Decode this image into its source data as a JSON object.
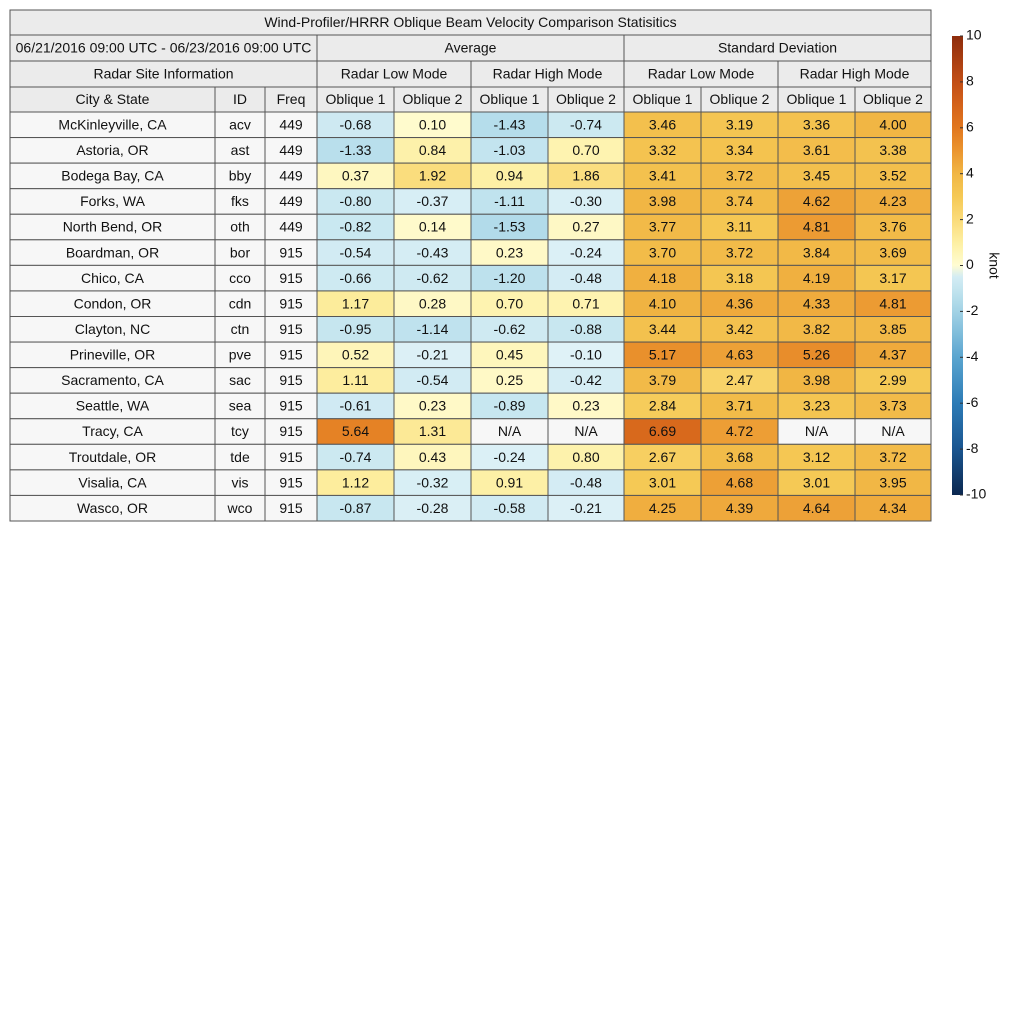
{
  "title": "Wind-Profiler/HRRR Oblique Beam Velocity Comparison Statisitics",
  "date_range": "06/21/2016 09:00 UTC - 06/23/2016 09:00 UTC",
  "group_headers": [
    "Average",
    "Standard Deviation"
  ],
  "site_header": "Radar Site Information",
  "mode_headers": [
    "Radar Low Mode",
    "Radar High Mode",
    "Radar Low Mode",
    "Radar High Mode"
  ],
  "columns": [
    "City & State",
    "ID",
    "Freq",
    "Oblique 1",
    "Oblique 2",
    "Oblique 1",
    "Oblique 2",
    "Oblique 1",
    "Oblique 2",
    "Oblique 1",
    "Oblique 2"
  ],
  "rows": [
    [
      "McKinleyville, CA",
      "acv",
      "449",
      "-0.68",
      "0.10",
      "-1.43",
      "-0.74",
      "3.46",
      "3.19",
      "3.36",
      "4.00"
    ],
    [
      "Astoria, OR",
      "ast",
      "449",
      "-1.33",
      "0.84",
      "-1.03",
      "0.70",
      "3.32",
      "3.34",
      "3.61",
      "3.38"
    ],
    [
      "Bodega Bay, CA",
      "bby",
      "449",
      "0.37",
      "1.92",
      "0.94",
      "1.86",
      "3.41",
      "3.72",
      "3.45",
      "3.52"
    ],
    [
      "Forks, WA",
      "fks",
      "449",
      "-0.80",
      "-0.37",
      "-1.11",
      "-0.30",
      "3.98",
      "3.74",
      "4.62",
      "4.23"
    ],
    [
      "North Bend, OR",
      "oth",
      "449",
      "-0.82",
      "0.14",
      "-1.53",
      "0.27",
      "3.77",
      "3.11",
      "4.81",
      "3.76"
    ],
    [
      "Boardman, OR",
      "bor",
      "915",
      "-0.54",
      "-0.43",
      "0.23",
      "-0.24",
      "3.70",
      "3.72",
      "3.84",
      "3.69"
    ],
    [
      "Chico, CA",
      "cco",
      "915",
      "-0.66",
      "-0.62",
      "-1.20",
      "-0.48",
      "4.18",
      "3.18",
      "4.19",
      "3.17"
    ],
    [
      "Condon, OR",
      "cdn",
      "915",
      "1.17",
      "0.28",
      "0.70",
      "0.71",
      "4.10",
      "4.36",
      "4.33",
      "4.81"
    ],
    [
      "Clayton, NC",
      "ctn",
      "915",
      "-0.95",
      "-1.14",
      "-0.62",
      "-0.88",
      "3.44",
      "3.42",
      "3.82",
      "3.85"
    ],
    [
      "Prineville, OR",
      "pve",
      "915",
      "0.52",
      "-0.21",
      "0.45",
      "-0.10",
      "5.17",
      "4.63",
      "5.26",
      "4.37"
    ],
    [
      "Sacramento, CA",
      "sac",
      "915",
      "1.11",
      "-0.54",
      "0.25",
      "-0.42",
      "3.79",
      "2.47",
      "3.98",
      "2.99"
    ],
    [
      "Seattle, WA",
      "sea",
      "915",
      "-0.61",
      "0.23",
      "-0.89",
      "0.23",
      "2.84",
      "3.71",
      "3.23",
      "3.73"
    ],
    [
      "Tracy, CA",
      "tcy",
      "915",
      "5.64",
      "1.31",
      "N/A",
      "N/A",
      "6.69",
      "4.72",
      "N/A",
      "N/A"
    ],
    [
      "Troutdale, OR",
      "tde",
      "915",
      "-0.74",
      "0.43",
      "-0.24",
      "0.80",
      "2.67",
      "3.68",
      "3.12",
      "3.72"
    ],
    [
      "Visalia, CA",
      "vis",
      "915",
      "1.12",
      "-0.32",
      "0.91",
      "-0.48",
      "3.01",
      "4.68",
      "3.01",
      "3.95"
    ],
    [
      "Wasco, OR",
      "wco",
      "915",
      "-0.87",
      "-0.28",
      "-0.58",
      "-0.21",
      "4.25",
      "4.39",
      "4.64",
      "4.34"
    ]
  ],
  "colorbar": {
    "label": "knot",
    "range": [
      -10,
      10
    ],
    "ticks": [
      10,
      8,
      6,
      4,
      2,
      0,
      -2,
      -4,
      -6,
      -8,
      -10
    ]
  }
}
